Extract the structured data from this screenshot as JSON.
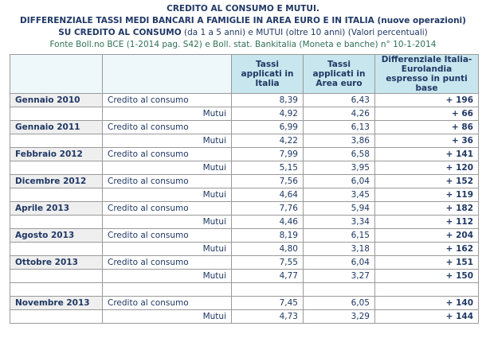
{
  "header": {
    "title": "CREDITO AL CONSUMO E MUTUI.",
    "subtitle": "DIFFERENZIALE TASSI MEDI BANCARI A FAMIGLIE IN AREA EURO E IN ITALIA (nuove operazioni)",
    "line3": {
      "bold": "SU CREDITO AL CONSUMO",
      "rest": "(da 1 a 5 anni) e  MUTUI (oltre 10 anni) (Valori percentuali)"
    },
    "source": "Fonte Boll.no BCE (1-2014 pag. S42) e  Boll. stat. Bankitalia (Moneta e banche) n° 10-1-2014"
  },
  "table": {
    "columns": [
      "Tassi applicati in Italia",
      "Tassi applicati in Area euro",
      "Differenziale Italia-Eurolandia espresso in punti base"
    ],
    "groups": [
      {
        "period": "Gennaio 2010",
        "rows": [
          [
            "Credito al consumo",
            "8,39",
            "6,43",
            "+ 196"
          ],
          [
            "Mutui",
            "4,92",
            "4,26",
            "+ 66"
          ]
        ]
      },
      {
        "period": "Gennaio 2011",
        "rows": [
          [
            "Credito al consumo",
            "6,99",
            "6,13",
            "+ 86"
          ],
          [
            "Mutui",
            "4,22",
            "3,86",
            "+ 36"
          ]
        ]
      },
      {
        "period": "Febbraio 2012",
        "rows": [
          [
            "Credito al consumo",
            "7,99",
            "6,58",
            "+ 141"
          ],
          [
            "Mutui",
            "5,15",
            "3,95",
            "+ 120"
          ]
        ]
      },
      {
        "period": "Dicembre 2012",
        "rows": [
          [
            "Credito al consumo",
            "7,56",
            "6,04",
            "+ 152"
          ],
          [
            "Mutui",
            "4,64",
            "3,45",
            "+ 119"
          ]
        ]
      },
      {
        "period": "Aprile 2013",
        "rows": [
          [
            "Credito al consumo",
            "7,76",
            "5,94",
            "+ 182"
          ],
          [
            "Mutui",
            "4,46",
            "3,34",
            "+ 112"
          ]
        ]
      },
      {
        "period": "Agosto 2013",
        "rows": [
          [
            "Credito al consumo",
            "8,19",
            "6,15",
            "+ 204"
          ],
          [
            "Mutui",
            "4,80",
            "3,18",
            "+ 162"
          ]
        ]
      },
      {
        "period": "Ottobre 2013",
        "rows": [
          [
            "Credito al consumo",
            "7,55",
            "6,04",
            "+ 151"
          ],
          [
            "Mutui",
            "4,77",
            "3,27",
            "+ 150"
          ]
        ]
      },
      {
        "period": "Novembre 2013",
        "rows": [
          [
            "Credito al consumo",
            "7,45",
            "6,05",
            "+ 140"
          ],
          [
            "Mutui",
            "4,73",
            "3,29",
            "+ 144"
          ]
        ]
      }
    ]
  }
}
